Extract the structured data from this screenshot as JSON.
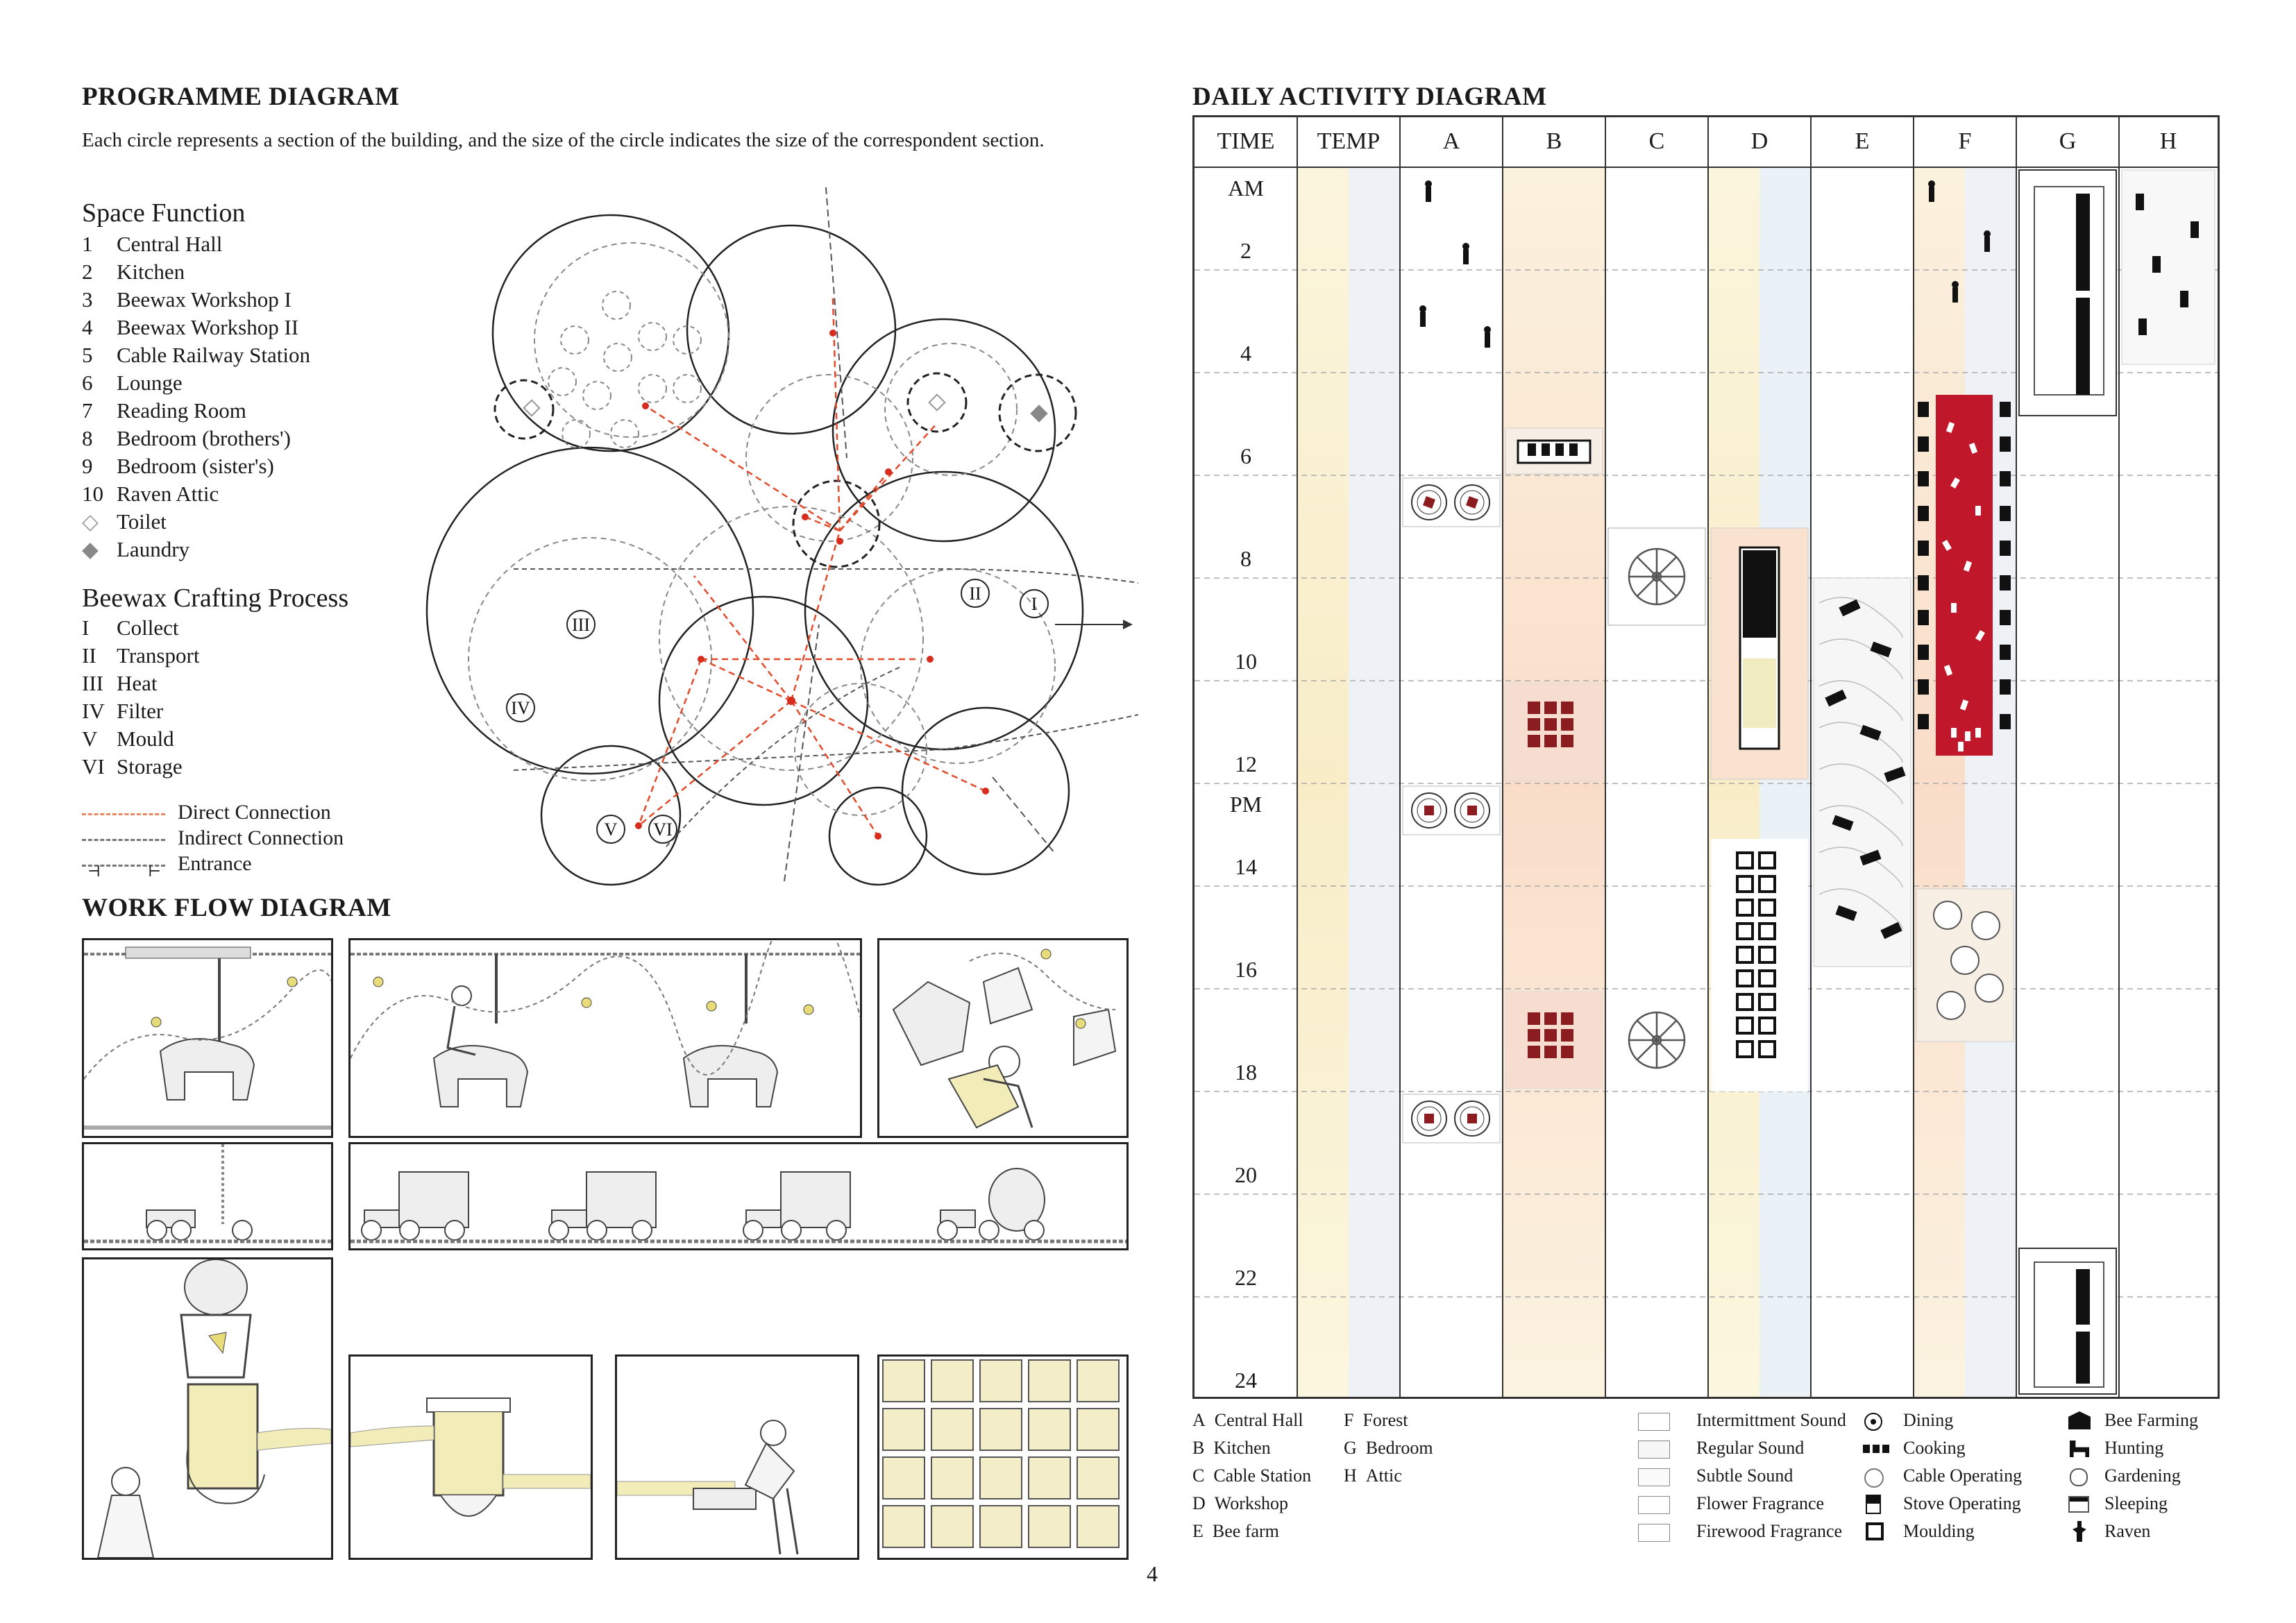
{
  "programme": {
    "title": "PROGRAMME DIAGRAM",
    "description": "Each circle represents a section of the building, and the size of the circle indicates the size of  the correspondent section.",
    "space_function_title": "Space Function",
    "spaces": [
      {
        "num": "1",
        "label": "Central Hall"
      },
      {
        "num": "2",
        "label": "Kitchen"
      },
      {
        "num": "3",
        "label": "Beewax Workshop I"
      },
      {
        "num": "4",
        "label": "Beewax Workshop II"
      },
      {
        "num": "5",
        "label": "Cable Railway Station"
      },
      {
        "num": "6",
        "label": "Lounge"
      },
      {
        "num": "7",
        "label": "Reading Room"
      },
      {
        "num": "8",
        "label": "Bedroom (brothers')"
      },
      {
        "num": "9",
        "label": "Bedroom (sister's)"
      },
      {
        "num": "10",
        "label": "Raven Attic"
      }
    ],
    "toilet_label": "Toilet",
    "laundry_label": "Laundry",
    "process_title": "Beewax Crafting Process",
    "process": [
      {
        "num": "I",
        "label": "Collect"
      },
      {
        "num": "II",
        "label": "Transport"
      },
      {
        "num": "III",
        "label": "Heat"
      },
      {
        "num": "IV",
        "label": "Filter"
      },
      {
        "num": "V",
        "label": "Mould"
      },
      {
        "num": "VI",
        "label": "Storage"
      }
    ],
    "connections": {
      "direct": "Direct Connection",
      "indirect": "Indirect Connection",
      "entrance": "Entrance"
    },
    "diagram_numerals": [
      "I",
      "II",
      "III",
      "IV",
      "V",
      "VI"
    ]
  },
  "workflow": {
    "title": "WORK FLOW DIAGRAM"
  },
  "daily": {
    "title": "DAILY ACTIVITY DIAGRAM",
    "headers": [
      "TIME",
      "TEMP",
      "A",
      "B",
      "C",
      "D",
      "E",
      "F",
      "G",
      "H"
    ],
    "time_rows": [
      {
        "top": "AM",
        "bottom": "2"
      },
      {
        "top": "",
        "bottom": "4"
      },
      {
        "top": "",
        "bottom": "6"
      },
      {
        "top": "",
        "bottom": "8"
      },
      {
        "top": "",
        "bottom": "10"
      },
      {
        "top": "",
        "bottom": "12"
      },
      {
        "top": "PM",
        "bottom": "14"
      },
      {
        "top": "",
        "bottom": "16"
      },
      {
        "top": "",
        "bottom": "18"
      },
      {
        "top": "",
        "bottom": "20"
      },
      {
        "top": "",
        "bottom": "22"
      },
      {
        "top": "",
        "bottom": "24"
      }
    ],
    "accent_color": "#c0182a",
    "legend_places": [
      {
        "key": "A",
        "label": "Central Hall"
      },
      {
        "key": "B",
        "label": "Kitchen"
      },
      {
        "key": "C",
        "label": "Cable Station"
      },
      {
        "key": "D",
        "label": "Workshop"
      },
      {
        "key": "E",
        "label": "Bee farm"
      },
      {
        "key": "F",
        "label": "Forest"
      },
      {
        "key": "G",
        "label": "Bedroom"
      },
      {
        "key": "H",
        "label": "Attic"
      }
    ],
    "legend_sounds": [
      "Intermittment Sound",
      "Regular Sound",
      "Subtle Sound",
      "Flower Fragrance",
      "Firewood Fragrance"
    ],
    "legend_activities": [
      "Dining",
      "Cooking",
      "Cable Operating",
      "Stove Operating",
      "Moulding"
    ],
    "legend_activities2": [
      "Bee  Farming",
      "Hunting",
      "Gardening",
      "Sleeping",
      "Raven"
    ]
  },
  "page_number": "4"
}
